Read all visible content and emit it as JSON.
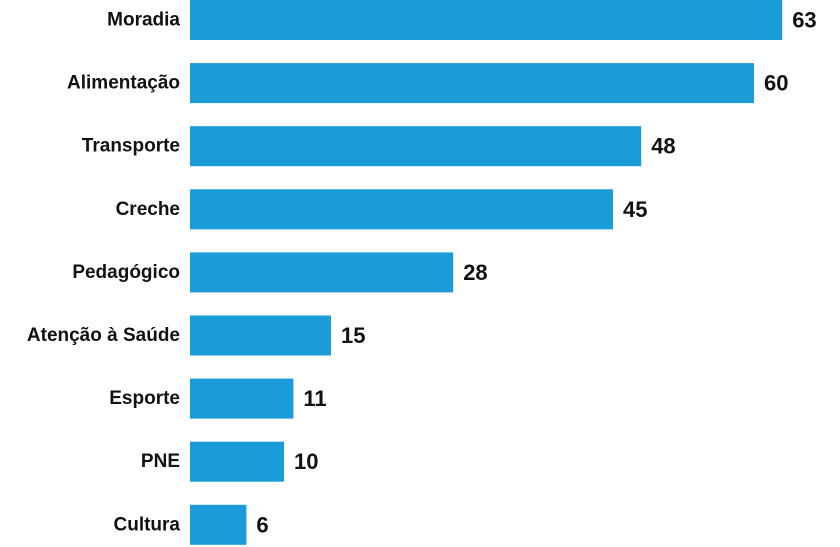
{
  "chart_data": {
    "type": "bar",
    "orientation": "horizontal",
    "categories": [
      "Moradia",
      "Alimentação",
      "Transporte",
      "Creche",
      "Pedagógico",
      "Atenção à Saúde",
      "Esporte",
      "PNE",
      "Cultura"
    ],
    "values": [
      63,
      60,
      48,
      45,
      28,
      15,
      11,
      10,
      6
    ],
    "title": "",
    "xlabel": "",
    "ylabel": "",
    "xlim": [
      0,
      63
    ],
    "grid": false,
    "bar_color": "#1b9bd7"
  }
}
